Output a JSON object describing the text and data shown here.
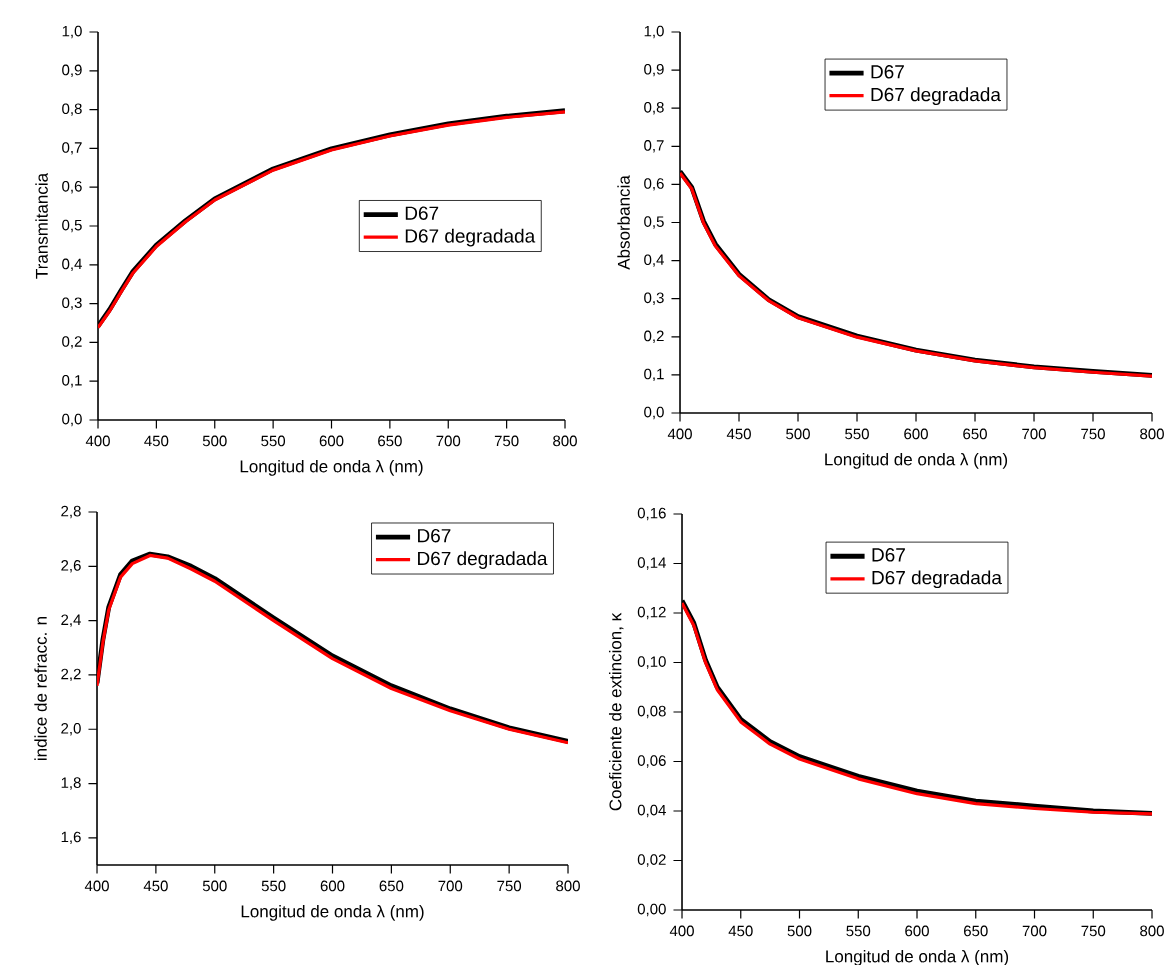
{
  "chart_data": [
    {
      "type": "line",
      "xlabel": "Longitud de onda λ (nm)",
      "ylabel": "Transmitancia",
      "legend": "right",
      "x": [
        400,
        410,
        420,
        430,
        450,
        475,
        500,
        550,
        600,
        650,
        700,
        750,
        800
      ],
      "series": [
        {
          "name": "D67",
          "color": "#000000",
          "values": [
            0.242,
            0.285,
            0.335,
            0.383,
            0.451,
            0.514,
            0.57,
            0.647,
            0.699,
            0.735,
            0.763,
            0.783,
            0.797
          ]
        },
        {
          "name": "D67 degradada",
          "color": "#ff0000",
          "values": [
            0.238,
            0.281,
            0.331,
            0.379,
            0.447,
            0.511,
            0.567,
            0.644,
            0.696,
            0.732,
            0.76,
            0.78,
            0.794
          ]
        }
      ],
      "xlim": [
        400,
        800
      ],
      "xticks": [
        400,
        450,
        500,
        550,
        600,
        650,
        700,
        750,
        800
      ],
      "ylim": [
        0,
        1
      ],
      "yticks": [
        {
          "value": 0,
          "label": "0,0"
        },
        {
          "value": 0.1,
          "label": "0,1"
        },
        {
          "value": 0.2,
          "label": "0,2"
        },
        {
          "value": 0.3,
          "label": "0,3"
        },
        {
          "value": 0.4,
          "label": "0,4"
        },
        {
          "value": 0.5,
          "label": "0,5"
        },
        {
          "value": 0.6,
          "label": "0,6"
        },
        {
          "value": 0.7,
          "label": "0,7"
        },
        {
          "value": 0.8,
          "label": "0,8"
        },
        {
          "value": 0.9,
          "label": "0,9"
        },
        {
          "value": 1,
          "label": "1,0"
        }
      ]
    },
    {
      "type": "line",
      "xlabel": "Longitud de onda λ (nm)",
      "ylabel": "Absorbancia",
      "legend": "top",
      "x": [
        400,
        410,
        420,
        430,
        450,
        475,
        500,
        550,
        600,
        650,
        700,
        750,
        800
      ],
      "series": [
        {
          "name": "D67",
          "color": "#000000",
          "values": [
            0.634,
            0.592,
            0.503,
            0.443,
            0.364,
            0.298,
            0.253,
            0.202,
            0.165,
            0.139,
            0.121,
            0.109,
            0.099
          ]
        },
        {
          "name": "D67 degradada",
          "color": "#ff0000",
          "values": [
            0.63,
            0.588,
            0.498,
            0.438,
            0.36,
            0.295,
            0.25,
            0.199,
            0.163,
            0.137,
            0.119,
            0.107,
            0.097
          ]
        }
      ],
      "xlim": [
        400,
        800
      ],
      "xticks": [
        400,
        450,
        500,
        550,
        600,
        650,
        700,
        750,
        800
      ],
      "ylim": [
        0,
        1
      ],
      "yticks": [
        {
          "value": 0,
          "label": "0,0"
        },
        {
          "value": 0.1,
          "label": "0,1"
        },
        {
          "value": 0.2,
          "label": "0,2"
        },
        {
          "value": 0.3,
          "label": "0,3"
        },
        {
          "value": 0.4,
          "label": "0,4"
        },
        {
          "value": 0.5,
          "label": "0,5"
        },
        {
          "value": 0.6,
          "label": "0,6"
        },
        {
          "value": 0.7,
          "label": "0,7"
        },
        {
          "value": 0.8,
          "label": "0,8"
        },
        {
          "value": 0.9,
          "label": "0,9"
        },
        {
          "value": 1,
          "label": "1,0"
        }
      ]
    },
    {
      "type": "line",
      "xlabel": "Longitud de onda λ (nm)",
      "ylabel": "indice de refracc. n",
      "legend": "top right",
      "x": [
        400,
        405,
        410,
        420,
        430,
        445,
        460,
        480,
        500,
        550,
        600,
        650,
        700,
        750,
        800
      ],
      "series": [
        {
          "name": "D67",
          "color": "#000000",
          "values": [
            2.17,
            2.33,
            2.45,
            2.57,
            2.62,
            2.645,
            2.635,
            2.6,
            2.555,
            2.41,
            2.27,
            2.16,
            2.075,
            2.005,
            1.955
          ]
        },
        {
          "name": "D67 degradada",
          "color": "#ff0000",
          "values": [
            2.16,
            2.32,
            2.44,
            2.56,
            2.61,
            2.64,
            2.63,
            2.59,
            2.545,
            2.4,
            2.26,
            2.15,
            2.068,
            2.0,
            1.95
          ]
        }
      ],
      "xlim": [
        400,
        800
      ],
      "xticks": [
        400,
        450,
        500,
        550,
        600,
        650,
        700,
        750,
        800
      ],
      "ylim": [
        1.5,
        2.8
      ],
      "yticks": [
        {
          "value": 1.6,
          "label": "1,6"
        },
        {
          "value": 1.8,
          "label": "1,8"
        },
        {
          "value": 2.0,
          "label": "2,0"
        },
        {
          "value": 2.2,
          "label": "2,2"
        },
        {
          "value": 2.4,
          "label": "2,4"
        },
        {
          "value": 2.6,
          "label": "2,6"
        },
        {
          "value": 2.8,
          "label": "2,8"
        }
      ]
    },
    {
      "type": "line",
      "xlabel": "Longitud de onda λ (nm)",
      "ylabel": "Coeficiente de extincion, κ",
      "legend": "top",
      "x": [
        400,
        410,
        420,
        430,
        450,
        475,
        500,
        550,
        600,
        650,
        700,
        750,
        800
      ],
      "series": [
        {
          "name": "D67",
          "color": "#000000",
          "values": [
            0.125,
            0.116,
            0.101,
            0.09,
            0.077,
            0.068,
            0.062,
            0.054,
            0.048,
            0.044,
            0.042,
            0.04,
            0.039
          ]
        },
        {
          "name": "D67 degradada",
          "color": "#ff0000",
          "values": [
            0.124,
            0.115,
            0.1,
            0.089,
            0.076,
            0.067,
            0.061,
            0.053,
            0.047,
            0.043,
            0.041,
            0.0395,
            0.0388
          ]
        }
      ],
      "xlim": [
        400,
        800
      ],
      "xticks": [
        400,
        450,
        500,
        550,
        600,
        650,
        700,
        750,
        800
      ],
      "ylim": [
        0,
        0.16
      ],
      "yticks": [
        {
          "value": 0,
          "label": "0,00"
        },
        {
          "value": 0.02,
          "label": "0,02"
        },
        {
          "value": 0.04,
          "label": "0,04"
        },
        {
          "value": 0.06,
          "label": "0,06"
        },
        {
          "value": 0.08,
          "label": "0,08"
        },
        {
          "value": 0.1,
          "label": "0,10"
        },
        {
          "value": 0.12,
          "label": "0,12"
        },
        {
          "value": 0.14,
          "label": "0,14"
        },
        {
          "value": 0.16,
          "label": "0,16"
        }
      ]
    }
  ]
}
